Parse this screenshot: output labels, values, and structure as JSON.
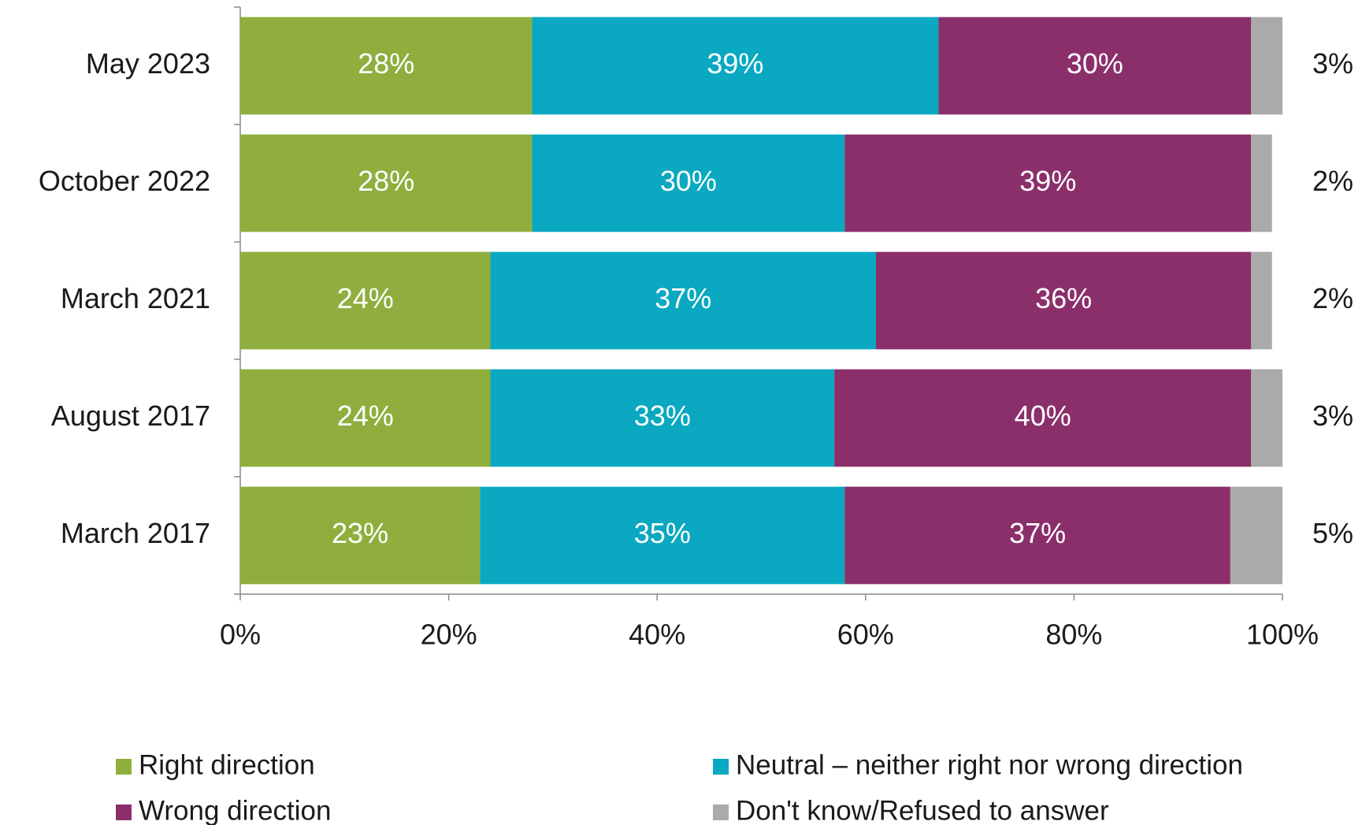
{
  "chart_data": {
    "type": "stacked-barh",
    "categories": [
      "May 2023",
      "October 2022",
      "March 2021",
      "August 2017",
      "March 2017"
    ],
    "series": [
      {
        "name": "Right direction",
        "color": "#8fae3e",
        "values": [
          28,
          28,
          24,
          24,
          23
        ],
        "value_labels": [
          "28%",
          "28%",
          "24%",
          "24%",
          "23%"
        ]
      },
      {
        "name": "Neutral – neither right nor wrong direction",
        "color": "#0aa8c1",
        "values": [
          39,
          30,
          37,
          33,
          35
        ],
        "value_labels": [
          "39%",
          "30%",
          "37%",
          "33%",
          "35%"
        ]
      },
      {
        "name": "Wrong direction",
        "color": "#8b2f6b",
        "values": [
          30,
          39,
          36,
          40,
          37
        ],
        "value_labels": [
          "30%",
          "39%",
          "36%",
          "40%",
          "37%"
        ]
      },
      {
        "name": "Don't know/Refused to answer",
        "color": "#aaaaaa",
        "values": [
          3,
          2,
          2,
          3,
          5
        ],
        "value_labels": [
          "3%",
          "2%",
          "2%",
          "3%",
          "5%"
        ]
      }
    ],
    "xlim": [
      0,
      100
    ],
    "xticks": [
      {
        "value": 0,
        "label": "0%"
      },
      {
        "value": 20,
        "label": "20%"
      },
      {
        "value": 40,
        "label": "40%"
      },
      {
        "value": 60,
        "label": "60%"
      },
      {
        "value": 80,
        "label": "80%"
      },
      {
        "value": 100,
        "label": "100%"
      }
    ]
  }
}
